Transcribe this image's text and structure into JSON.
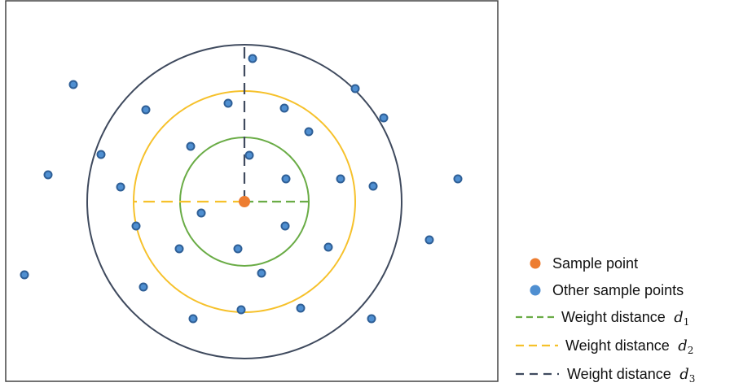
{
  "colors": {
    "frame": "#444444",
    "outer_circle": "#3f4a5e",
    "middle_circle": "#f6c12b",
    "inner_circle": "#6aac46",
    "sample_point": "#ed7d31",
    "other_points_fill": "#4f8fd1",
    "other_points_stroke": "#2f5f96",
    "d1_line": "#6aac46",
    "d2_line": "#f6c12b",
    "d3_line": "#3f4a5e"
  },
  "legend": {
    "sample_point": "Sample point",
    "other_points": "Other sample points",
    "weight_distance_prefix": "Weight distance",
    "var": "d",
    "d1_sub": "1",
    "d2_sub": "2",
    "d3_sub": "3"
  },
  "icons": {
    "sample_point_marker": "orange-filled-circle",
    "other_points_marker": "blue-filled-circle",
    "distance_line_marker": "dashed-line"
  }
}
